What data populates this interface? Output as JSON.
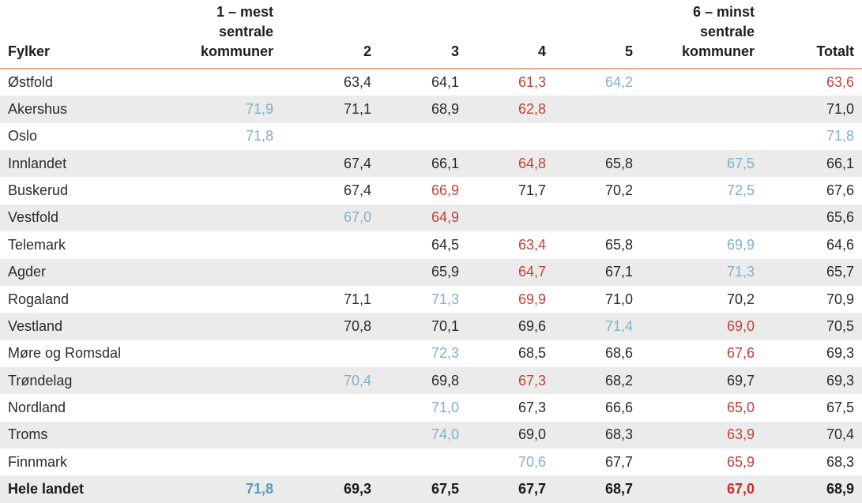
{
  "chart_data": {
    "type": "table",
    "columns": [
      "Fylker",
      "1 – mest\nsentrale\nkommuner",
      "2",
      "3",
      "4",
      "5",
      "6 – minst\nsentrale\nkommuner",
      "Totalt"
    ],
    "column_keys": [
      "fylker",
      "c1",
      "c2",
      "c3",
      "c4",
      "c5",
      "c6",
      "totalt"
    ],
    "rows": [
      {
        "fylke": "Østfold",
        "cells": [
          {
            "v": ""
          },
          {
            "v": "63,4"
          },
          {
            "v": "64,1"
          },
          {
            "v": "61,3",
            "c": "red"
          },
          {
            "v": "64,2",
            "c": "blue"
          },
          {
            "v": ""
          },
          {
            "v": "63,6",
            "c": "red"
          }
        ]
      },
      {
        "fylke": "Akershus",
        "cells": [
          {
            "v": "71,9",
            "c": "blue"
          },
          {
            "v": "71,1"
          },
          {
            "v": "68,9"
          },
          {
            "v": "62,8",
            "c": "red"
          },
          {
            "v": ""
          },
          {
            "v": ""
          },
          {
            "v": "71,0"
          }
        ]
      },
      {
        "fylke": "Oslo",
        "cells": [
          {
            "v": "71,8",
            "c": "blue"
          },
          {
            "v": ""
          },
          {
            "v": ""
          },
          {
            "v": ""
          },
          {
            "v": ""
          },
          {
            "v": ""
          },
          {
            "v": "71,8",
            "c": "blue"
          }
        ]
      },
      {
        "fylke": "Innlandet",
        "cells": [
          {
            "v": ""
          },
          {
            "v": "67,4"
          },
          {
            "v": "66,1"
          },
          {
            "v": "64,8",
            "c": "red"
          },
          {
            "v": "65,8"
          },
          {
            "v": "67,5",
            "c": "blue"
          },
          {
            "v": "66,1"
          }
        ]
      },
      {
        "fylke": "Buskerud",
        "cells": [
          {
            "v": ""
          },
          {
            "v": "67,4"
          },
          {
            "v": "66,9",
            "c": "red"
          },
          {
            "v": "71,7"
          },
          {
            "v": "70,2"
          },
          {
            "v": "72,5",
            "c": "blue"
          },
          {
            "v": "67,6"
          }
        ]
      },
      {
        "fylke": "Vestfold",
        "cells": [
          {
            "v": ""
          },
          {
            "v": "67,0",
            "c": "blue"
          },
          {
            "v": "64,9",
            "c": "red"
          },
          {
            "v": ""
          },
          {
            "v": ""
          },
          {
            "v": ""
          },
          {
            "v": "65,6"
          }
        ]
      },
      {
        "fylke": "Telemark",
        "cells": [
          {
            "v": ""
          },
          {
            "v": ""
          },
          {
            "v": "64,5"
          },
          {
            "v": "63,4",
            "c": "red"
          },
          {
            "v": "65,8"
          },
          {
            "v": "69,9",
            "c": "blue"
          },
          {
            "v": "64,6"
          }
        ]
      },
      {
        "fylke": "Agder",
        "cells": [
          {
            "v": ""
          },
          {
            "v": ""
          },
          {
            "v": "65,9"
          },
          {
            "v": "64,7",
            "c": "red"
          },
          {
            "v": "67,1"
          },
          {
            "v": "71,3",
            "c": "blue"
          },
          {
            "v": "65,7"
          }
        ]
      },
      {
        "fylke": "Rogaland",
        "cells": [
          {
            "v": ""
          },
          {
            "v": "71,1"
          },
          {
            "v": "71,3",
            "c": "blue"
          },
          {
            "v": "69,9",
            "c": "red"
          },
          {
            "v": "71,0"
          },
          {
            "v": "70,2"
          },
          {
            "v": "70,9"
          }
        ]
      },
      {
        "fylke": "Vestland",
        "cells": [
          {
            "v": ""
          },
          {
            "v": "70,8"
          },
          {
            "v": "70,1"
          },
          {
            "v": "69,6"
          },
          {
            "v": "71,4",
            "c": "blue"
          },
          {
            "v": "69,0",
            "c": "red"
          },
          {
            "v": "70,5"
          }
        ]
      },
      {
        "fylke": "Møre og Romsdal",
        "cells": [
          {
            "v": ""
          },
          {
            "v": ""
          },
          {
            "v": "72,3",
            "c": "blue"
          },
          {
            "v": "68,5"
          },
          {
            "v": "68,6"
          },
          {
            "v": "67,6",
            "c": "red"
          },
          {
            "v": "69,3"
          }
        ]
      },
      {
        "fylke": "Trøndelag",
        "cells": [
          {
            "v": ""
          },
          {
            "v": "70,4",
            "c": "blue"
          },
          {
            "v": "69,8"
          },
          {
            "v": "67,3",
            "c": "red"
          },
          {
            "v": "68,2"
          },
          {
            "v": "69,7"
          },
          {
            "v": "69,3"
          }
        ]
      },
      {
        "fylke": "Nordland",
        "cells": [
          {
            "v": ""
          },
          {
            "v": ""
          },
          {
            "v": "71,0",
            "c": "blue"
          },
          {
            "v": "67,3"
          },
          {
            "v": "66,6"
          },
          {
            "v": "65,0",
            "c": "red"
          },
          {
            "v": "67,5"
          }
        ]
      },
      {
        "fylke": "Troms",
        "cells": [
          {
            "v": ""
          },
          {
            "v": ""
          },
          {
            "v": "74,0",
            "c": "blue"
          },
          {
            "v": "69,0"
          },
          {
            "v": "68,3"
          },
          {
            "v": "63,9",
            "c": "red"
          },
          {
            "v": "70,4"
          }
        ]
      },
      {
        "fylke": "Finnmark",
        "cells": [
          {
            "v": ""
          },
          {
            "v": ""
          },
          {
            "v": ""
          },
          {
            "v": "70,6",
            "c": "blue"
          },
          {
            "v": "67,7"
          },
          {
            "v": "65,9",
            "c": "red"
          },
          {
            "v": "68,3"
          }
        ]
      },
      {
        "fylke": "Hele landet",
        "bold": true,
        "cells": [
          {
            "v": "71,8",
            "c": "blue"
          },
          {
            "v": "69,3"
          },
          {
            "v": "67,5"
          },
          {
            "v": "67,7"
          },
          {
            "v": "68,7"
          },
          {
            "v": "67,0",
            "c": "red"
          },
          {
            "v": "68,9"
          }
        ]
      }
    ],
    "colors": {
      "red": "#c2423a",
      "red_bold": "#cc2f2a",
      "blue": "#7fb2c6",
      "blue_bold": "#5b9ab5",
      "text": "#2b2b2b",
      "header_rule": "#e5aa8f",
      "alt_row_bg": "#ebebeb"
    }
  }
}
